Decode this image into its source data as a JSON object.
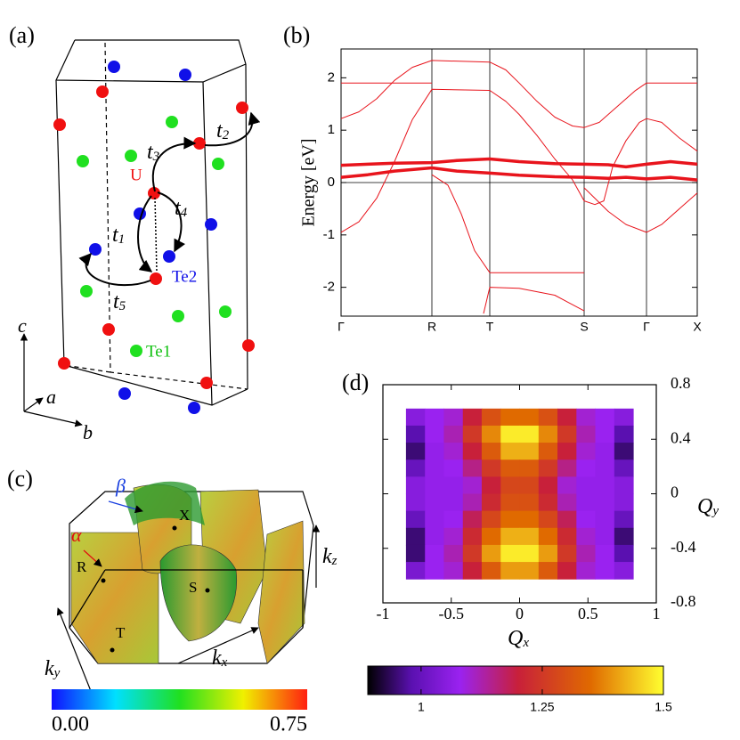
{
  "panel_a": {
    "label": "(a)",
    "atoms": {
      "u": "U",
      "te2": "Te2",
      "te1": "Te1"
    },
    "hoppings": [
      {
        "symbol": "t",
        "sub": "1"
      },
      {
        "symbol": "t",
        "sub": "2"
      },
      {
        "symbol": "t",
        "sub": "3"
      },
      {
        "symbol": "t",
        "sub": "4"
      },
      {
        "symbol": "t",
        "sub": "5"
      }
    ],
    "axes": {
      "a": "a",
      "b": "b",
      "c": "c"
    }
  },
  "panel_c": {
    "label": "(c)",
    "sheets": {
      "beta": "β",
      "alpha": "α"
    },
    "points": {
      "x": "X",
      "r": "R",
      "s": "S",
      "t": "T"
    },
    "axes": [
      {
        "symbol": "k",
        "sub": "x"
      },
      {
        "symbol": "k",
        "sub": "y"
      },
      {
        "symbol": "k",
        "sub": "z"
      }
    ],
    "colorbar": {
      "lim": [
        0,
        0.75
      ],
      "ticks": [
        {
          "value": 0,
          "label": "0.00"
        },
        {
          "value": 0.75,
          "label": "0.75"
        }
      ],
      "colors": [
        "#1010ff",
        "#00e0ff",
        "#20e020",
        "#f0f000",
        "#ff2010"
      ]
    }
  },
  "chart_data": [
    {
      "type": "line",
      "panel_label": "(b)",
      "ylabel": "Energy [eV]",
      "xlim": [
        0,
        4
      ],
      "ylim": [
        -2.55,
        2.55
      ],
      "yticks": [
        -2,
        -1,
        0,
        1,
        2
      ],
      "xticks": [
        {
          "value": 0,
          "label": "Γ"
        },
        {
          "value": 1.02,
          "label": "R"
        },
        {
          "value": 1.67,
          "label": "T"
        },
        {
          "value": 2.73,
          "label": "S"
        },
        {
          "value": 3.43,
          "label": "Γ"
        },
        {
          "value": 4,
          "label": "X"
        }
      ],
      "grid": "x",
      "zero_line": true,
      "color": "#e8141c",
      "series": [
        {
          "x": [
            0,
            0.5,
            1.02
          ],
          "values": [
            1.9,
            1.9,
            1.9
          ],
          "width": 1
        },
        {
          "x": [
            3.43,
            3.7,
            4
          ],
          "values": [
            1.9,
            1.9,
            1.9
          ],
          "width": 1
        },
        {
          "x": [
            0,
            0.2,
            0.4,
            0.6,
            0.8,
            1.02,
            1.67,
            1.85,
            2.0,
            2.2,
            2.4,
            2.6,
            2.73,
            2.9,
            3.1,
            3.3,
            3.43
          ],
          "values": [
            1.22,
            1.35,
            1.6,
            1.95,
            2.2,
            2.33,
            2.3,
            2.15,
            1.9,
            1.55,
            1.25,
            1.08,
            1.05,
            1.15,
            1.45,
            1.75,
            1.9
          ],
          "width": 1
        },
        {
          "x": [
            0,
            0.2,
            0.4,
            0.6,
            0.8,
            1.02,
            1.67,
            1.85,
            2.0,
            2.2,
            2.4,
            2.6,
            2.73,
            2.85,
            2.95,
            3.05,
            3.2,
            3.35,
            3.43,
            3.6,
            3.8,
            4
          ],
          "values": [
            -0.95,
            -0.75,
            -0.3,
            0.4,
            1.2,
            1.78,
            1.76,
            1.55,
            1.3,
            0.9,
            0.45,
            0.05,
            -0.35,
            -0.42,
            -0.35,
            0.3,
            0.8,
            1.15,
            1.22,
            1.15,
            0.85,
            0.6
          ],
          "width": 1
        },
        {
          "x": [
            0,
            0.3,
            0.6,
            1.02,
            1.3,
            1.67,
            2.0,
            2.4,
            2.73,
            3.0,
            3.2,
            3.43,
            3.7,
            4
          ],
          "values": [
            0.33,
            0.35,
            0.37,
            0.38,
            0.42,
            0.45,
            0.4,
            0.36,
            0.35,
            0.34,
            0.3,
            0.35,
            0.4,
            0.35
          ],
          "width": 3.5
        },
        {
          "x": [
            0,
            0.3,
            0.6,
            1.02,
            1.3,
            1.67,
            2.0,
            2.4,
            2.73,
            3.0,
            3.2,
            3.43,
            3.7,
            4
          ],
          "values": [
            0.1,
            0.15,
            0.22,
            0.28,
            0.22,
            0.18,
            0.14,
            0.11,
            0.1,
            0.08,
            0.1,
            0.07,
            0.1,
            0.05
          ],
          "width": 3.5
        },
        {
          "x": [
            1.02,
            1.2,
            1.35,
            1.5,
            1.67,
            2.2,
            2.73
          ],
          "values": [
            0.15,
            -0.05,
            -0.6,
            -1.3,
            -1.72,
            -1.72,
            -1.72
          ],
          "width": 1
        },
        {
          "x": [
            2.73,
            2.85,
            3.0,
            3.2,
            3.43,
            3.6,
            3.8,
            4
          ],
          "values": [
            -0.1,
            -0.3,
            -0.55,
            -0.8,
            -0.95,
            -0.8,
            -0.5,
            -0.2
          ],
          "width": 1
        },
        {
          "x": [
            1.6,
            1.67,
            2.0,
            2.4,
            2.73
          ],
          "values": [
            -2.5,
            -2.0,
            -2.02,
            -2.15,
            -2.45
          ],
          "width": 1
        }
      ]
    },
    {
      "type": "heatmap",
      "panel_label": "(d)",
      "xlabel": {
        "symbol": "Q",
        "sub": "x"
      },
      "ylabel": {
        "symbol": "Q",
        "sub": "y"
      },
      "xlim": [
        -1,
        1
      ],
      "ylim": [
        -0.8,
        0.8
      ],
      "xticks": [
        -1,
        -0.5,
        0,
        0.5,
        1
      ],
      "yticks": [
        0.8,
        0.4,
        0,
        -0.4,
        -0.8
      ],
      "x": [
        -0.762,
        -0.623,
        -0.485,
        -0.346,
        -0.208,
        -0.069,
        0.069,
        0.208,
        0.346,
        0.485,
        0.623,
        0.762
      ],
      "y": [
        0.5625,
        0.4375,
        0.3125,
        0.1875,
        0.0625,
        -0.0625,
        -0.1875,
        -0.3125,
        -0.4375,
        -0.5625
      ],
      "values": [
        [
          1.05,
          1.08,
          1.1,
          1.2,
          1.3,
          1.35,
          1.35,
          1.3,
          1.2,
          1.1,
          1.08,
          1.05
        ],
        [
          0.98,
          1.08,
          1.12,
          1.25,
          1.38,
          1.48,
          1.48,
          1.38,
          1.25,
          1.12,
          1.08,
          0.98
        ],
        [
          0.95,
          1.07,
          1.1,
          1.2,
          1.32,
          1.42,
          1.42,
          1.32,
          1.2,
          1.1,
          1.07,
          0.95
        ],
        [
          1.0,
          1.07,
          1.08,
          1.15,
          1.25,
          1.32,
          1.32,
          1.25,
          1.15,
          1.08,
          1.07,
          1.0
        ],
        [
          1.05,
          1.07,
          1.07,
          1.1,
          1.2,
          1.28,
          1.28,
          1.2,
          1.1,
          1.07,
          1.07,
          1.05
        ],
        [
          1.05,
          1.07,
          1.07,
          1.12,
          1.22,
          1.3,
          1.3,
          1.22,
          1.12,
          1.07,
          1.07,
          1.05
        ],
        [
          1.0,
          1.07,
          1.08,
          1.18,
          1.28,
          1.35,
          1.35,
          1.28,
          1.18,
          1.08,
          1.07,
          1.0
        ],
        [
          0.95,
          1.07,
          1.1,
          1.22,
          1.35,
          1.42,
          1.42,
          1.35,
          1.22,
          1.1,
          1.07,
          0.95
        ],
        [
          0.95,
          1.08,
          1.12,
          1.25,
          1.4,
          1.48,
          1.48,
          1.4,
          1.25,
          1.12,
          1.08,
          0.98
        ],
        [
          1.03,
          1.08,
          1.1,
          1.2,
          1.32,
          1.4,
          1.4,
          1.32,
          1.2,
          1.1,
          1.08,
          1.05
        ]
      ],
      "colorbar": {
        "lim": [
          0.89,
          1.5
        ],
        "ticks": [
          1,
          1.25,
          1.5
        ],
        "stops": [
          [
            0.89,
            "#000000"
          ],
          [
            0.98,
            "#5a10b0"
          ],
          [
            1.08,
            "#9a22f0"
          ],
          [
            1.2,
            "#c8203a"
          ],
          [
            1.35,
            "#e06a00"
          ],
          [
            1.5,
            "#ffff30"
          ]
        ]
      }
    }
  ]
}
